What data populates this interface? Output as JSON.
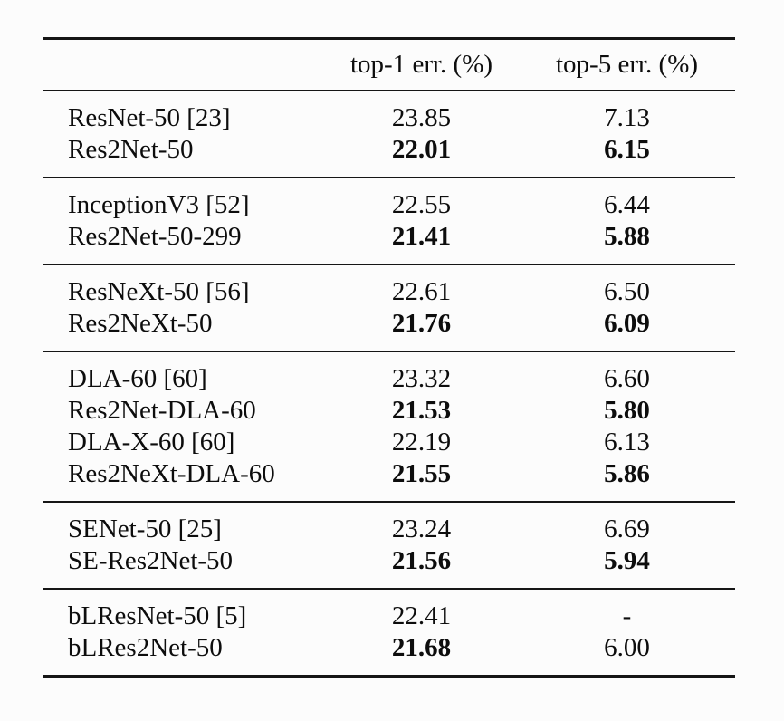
{
  "colors": {
    "background": "#fcfcfc",
    "text": "#0d0d0d",
    "rule": "#161616"
  },
  "table": {
    "columns": {
      "model": "",
      "top1": "top-1 err. (%)",
      "top5": "top-5 err. (%)"
    },
    "groups": [
      {
        "rows": [
          {
            "model": "ResNet-50 [23]",
            "top1": "23.85",
            "top1_bold": false,
            "top5": "7.13",
            "top5_bold": false
          },
          {
            "model": "Res2Net-50",
            "top1": "22.01",
            "top1_bold": true,
            "top5": "6.15",
            "top5_bold": true
          }
        ]
      },
      {
        "rows": [
          {
            "model": "InceptionV3 [52]",
            "top1": "22.55",
            "top1_bold": false,
            "top5": "6.44",
            "top5_bold": false
          },
          {
            "model": "Res2Net-50-299",
            "top1": "21.41",
            "top1_bold": true,
            "top5": "5.88",
            "top5_bold": true
          }
        ]
      },
      {
        "rows": [
          {
            "model": "ResNeXt-50 [56]",
            "top1": "22.61",
            "top1_bold": false,
            "top5": "6.50",
            "top5_bold": false
          },
          {
            "model": "Res2NeXt-50",
            "top1": "21.76",
            "top1_bold": true,
            "top5": "6.09",
            "top5_bold": true
          }
        ]
      },
      {
        "rows": [
          {
            "model": "DLA-60 [60]",
            "top1": "23.32",
            "top1_bold": false,
            "top5": "6.60",
            "top5_bold": false
          },
          {
            "model": "Res2Net-DLA-60",
            "top1": "21.53",
            "top1_bold": true,
            "top5": "5.80",
            "top5_bold": true
          },
          {
            "model": "DLA-X-60 [60]",
            "top1": "22.19",
            "top1_bold": false,
            "top5": "6.13",
            "top5_bold": false
          },
          {
            "model": "Res2NeXt-DLA-60",
            "top1": "21.55",
            "top1_bold": true,
            "top5": "5.86",
            "top5_bold": true
          }
        ]
      },
      {
        "rows": [
          {
            "model": "SENet-50 [25]",
            "top1": "23.24",
            "top1_bold": false,
            "top5": "6.69",
            "top5_bold": false
          },
          {
            "model": "SE-Res2Net-50",
            "top1": "21.56",
            "top1_bold": true,
            "top5": "5.94",
            "top5_bold": true
          }
        ]
      },
      {
        "rows": [
          {
            "model": "bLResNet-50 [5]",
            "top1": "22.41",
            "top1_bold": false,
            "top5": "-",
            "top5_bold": false
          },
          {
            "model": "bLRes2Net-50",
            "top1": "21.68",
            "top1_bold": true,
            "top5": "6.00",
            "top5_bold": false
          }
        ]
      }
    ]
  }
}
